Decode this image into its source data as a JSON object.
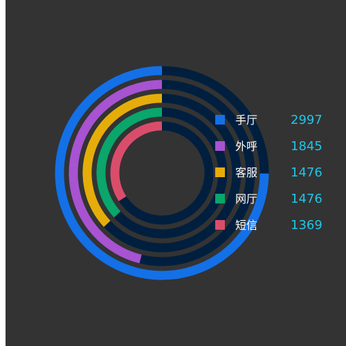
{
  "chart_data": {
    "type": "radial-bar",
    "max": 4000,
    "track_color": "#001f3f",
    "background_color": "#333333",
    "series": [
      {
        "name": "手厅",
        "value": 2997,
        "color": "#1470e6"
      },
      {
        "name": "外呼",
        "value": 1845,
        "color": "#a853d1"
      },
      {
        "name": "客服",
        "value": 1476,
        "color": "#e6ad0a"
      },
      {
        "name": "网厅",
        "value": 1476,
        "color": "#0aa66b"
      },
      {
        "name": "短信",
        "value": 1369,
        "color": "#d94d6b"
      }
    ],
    "legend": "right"
  }
}
